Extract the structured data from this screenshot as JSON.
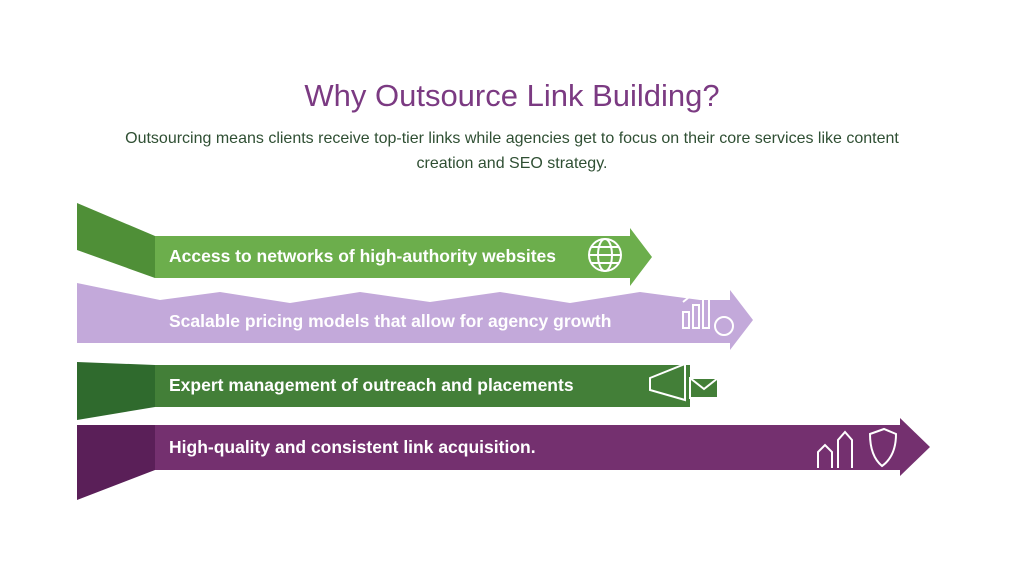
{
  "header": {
    "title": "Why Outsource Link Building?",
    "subtitle": "Outsourcing means clients receive top-tier links while agencies get to focus on their core services like content creation and SEO strategy."
  },
  "items": [
    {
      "label": "Access to networks of high-authority websites"
    },
    {
      "label": "Scalable pricing models that allow for agency growth"
    },
    {
      "label": "Expert management of outreach and placements"
    },
    {
      "label": "High-quality and consistent link acquisition."
    }
  ]
}
